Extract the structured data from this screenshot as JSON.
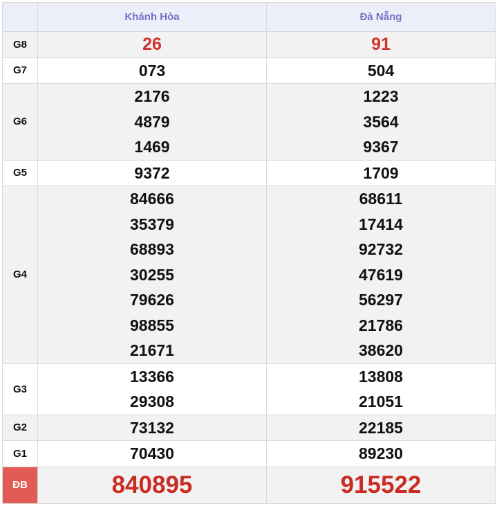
{
  "header": {
    "provinces": [
      "Khánh Hòa",
      "Đà Nẵng"
    ]
  },
  "colors": {
    "accent_header": "#7b6cc4",
    "prize_red": "#d0332b",
    "special_bg": "#e25b55"
  },
  "rows": [
    {
      "label": "G8",
      "values": [
        [
          "26"
        ],
        [
          "91"
        ]
      ]
    },
    {
      "label": "G7",
      "values": [
        [
          "073"
        ],
        [
          "504"
        ]
      ]
    },
    {
      "label": "G6",
      "values": [
        [
          "2176",
          "4879",
          "1469"
        ],
        [
          "1223",
          "3564",
          "9367"
        ]
      ]
    },
    {
      "label": "G5",
      "values": [
        [
          "9372"
        ],
        [
          "1709"
        ]
      ]
    },
    {
      "label": "G4",
      "values": [
        [
          "84666",
          "35379",
          "68893",
          "30255",
          "79626",
          "98855",
          "21671"
        ],
        [
          "68611",
          "17414",
          "92732",
          "47619",
          "56297",
          "21786",
          "38620"
        ]
      ]
    },
    {
      "label": "G3",
      "values": [
        [
          "13366",
          "29308"
        ],
        [
          "13808",
          "21051"
        ]
      ]
    },
    {
      "label": "G2",
      "values": [
        [
          "73132"
        ],
        [
          "22185"
        ]
      ]
    },
    {
      "label": "G1",
      "values": [
        [
          "70430"
        ],
        [
          "89230"
        ]
      ]
    },
    {
      "label": "ĐB",
      "values": [
        [
          "840895"
        ],
        [
          "915522"
        ]
      ]
    }
  ]
}
